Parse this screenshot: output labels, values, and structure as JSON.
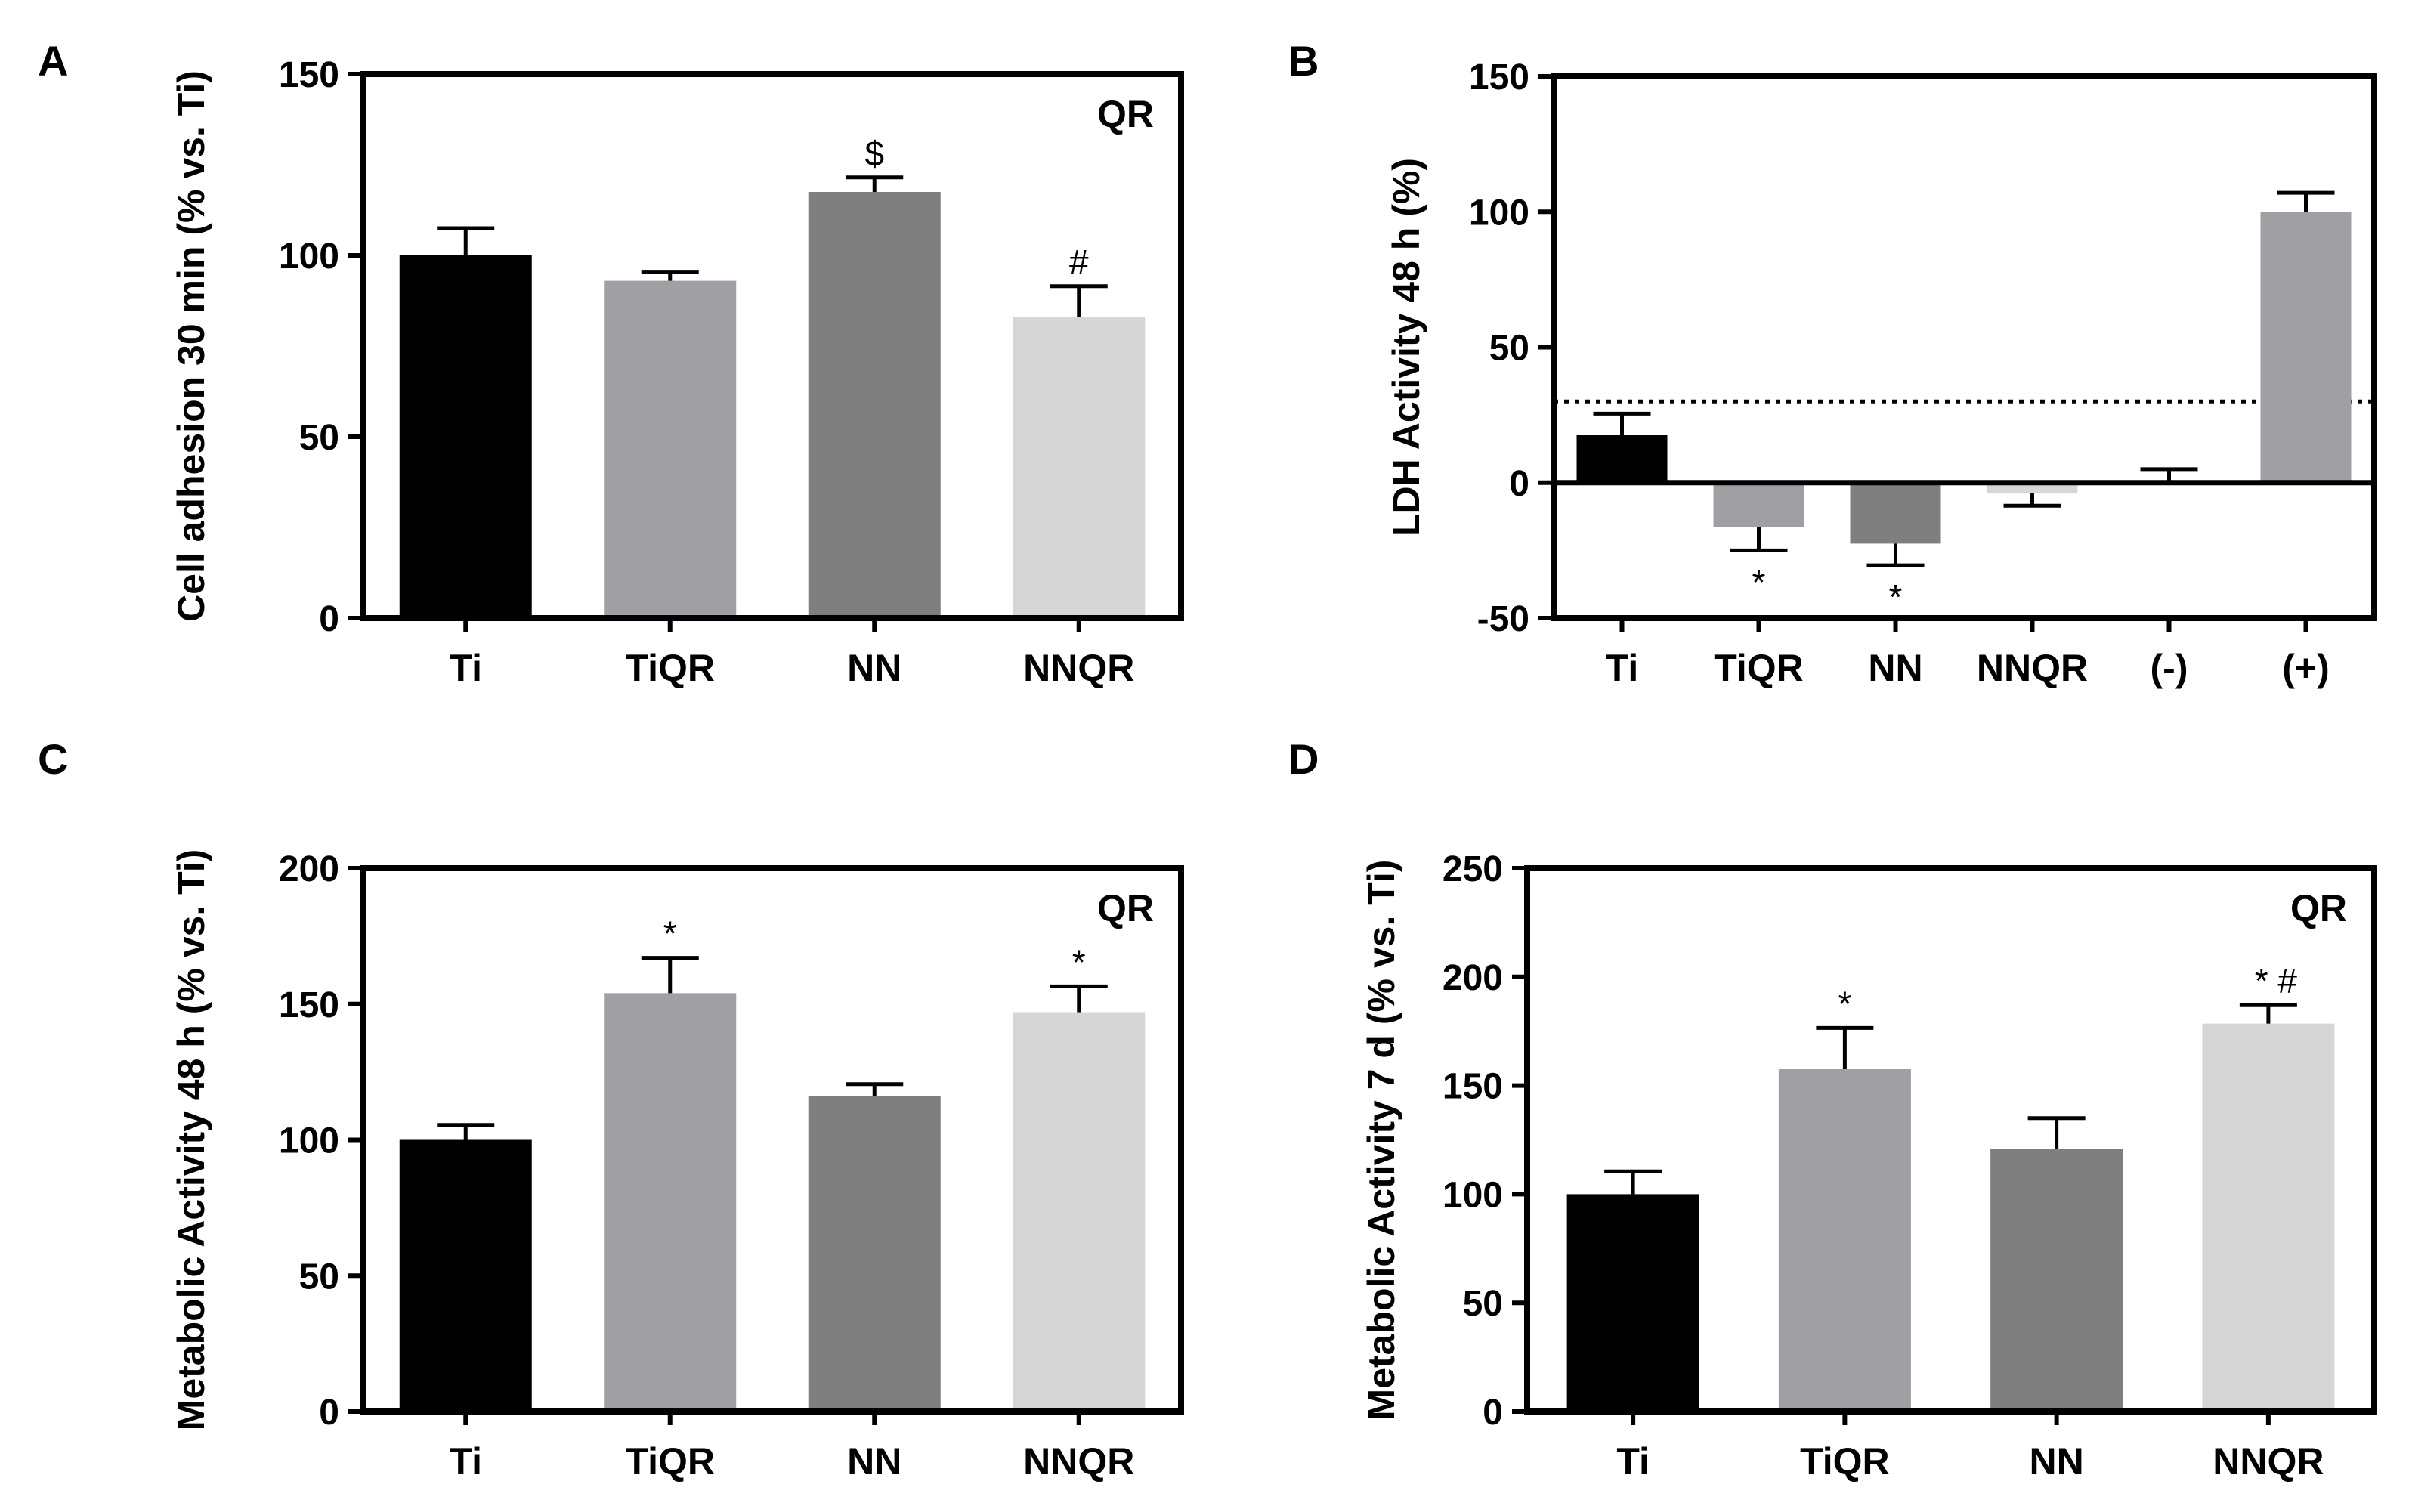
{
  "figure": {
    "background": "#ffffff",
    "axis_color": "#000000"
  },
  "chart_data": [
    {
      "panel": "A",
      "type": "bar",
      "categories": [
        "Ti",
        "TiQR",
        "NN",
        "NNQR"
      ],
      "values": [
        100,
        93,
        117.5,
        83
      ],
      "errors": [
        7.5,
        2.5,
        4,
        8.5
      ],
      "colors": [
        "#000000",
        "#a0a0a4",
        "#7f7f7f",
        "#d6d6d6"
      ],
      "annotations": [
        "",
        "",
        "$",
        "#"
      ],
      "title": "",
      "inset_label": "QR",
      "xlabel": "",
      "ylabel": "Cell adhesion  30 min (% vs. Ti)",
      "ylim": [
        0,
        150
      ],
      "yticks": [
        0,
        50,
        100,
        150
      ],
      "grid": false,
      "reference_line": null
    },
    {
      "panel": "B",
      "type": "bar",
      "categories": [
        "Ti",
        "TiQR",
        "NN",
        "NNQR",
        "(-)",
        "(+)"
      ],
      "values": [
        17.5,
        -16.5,
        -22.5,
        -4,
        0,
        100
      ],
      "errors": [
        8,
        8.5,
        8,
        4.5,
        5,
        7
      ],
      "colors": [
        "#000000",
        "#a0a0a4",
        "#7f7f7f",
        "#d6d6d6",
        "#d6d6d6",
        "#a0a0a4"
      ],
      "annotations": [
        "",
        "*",
        "*",
        "",
        "",
        ""
      ],
      "title": "",
      "inset_label": "",
      "xlabel": "",
      "ylabel": "LDH Activity 48 h  (%)",
      "ylim": [
        -50,
        150
      ],
      "yticks": [
        -50,
        0,
        50,
        100,
        150
      ],
      "grid": false,
      "reference_line": 30
    },
    {
      "panel": "C",
      "type": "bar",
      "categories": [
        "Ti",
        "TiQR",
        "NN",
        "NNQR"
      ],
      "values": [
        100,
        154,
        116,
        147
      ],
      "errors": [
        5.5,
        13,
        4.5,
        9.5
      ],
      "colors": [
        "#000000",
        "#a0a0a4",
        "#7f7f7f",
        "#d6d6d6"
      ],
      "annotations": [
        "",
        "*",
        "",
        "*"
      ],
      "title": "",
      "inset_label": "QR",
      "xlabel": "",
      "ylabel": "Metabolic Activity 48 h  (% vs. Ti)",
      "ylim": [
        0,
        200
      ],
      "yticks": [
        0,
        50,
        100,
        150,
        200
      ],
      "grid": false,
      "reference_line": null
    },
    {
      "panel": "D",
      "type": "bar",
      "categories": [
        "Ti",
        "TiQR",
        "NN",
        "NNQR"
      ],
      "values": [
        100,
        157.5,
        121,
        178.5
      ],
      "errors": [
        10.5,
        19,
        14,
        8.5
      ],
      "colors": [
        "#000000",
        "#a0a0a4",
        "#7f7f7f",
        "#d6d6d6"
      ],
      "annotations": [
        "",
        "*",
        "",
        "* #"
      ],
      "title": "",
      "inset_label": "QR",
      "xlabel": "",
      "ylabel": "Metabolic Activity 7 d  (% vs. Ti)",
      "ylim": [
        0,
        250
      ],
      "yticks": [
        0,
        50,
        100,
        150,
        200,
        250
      ],
      "grid": false,
      "reference_line": null
    }
  ]
}
